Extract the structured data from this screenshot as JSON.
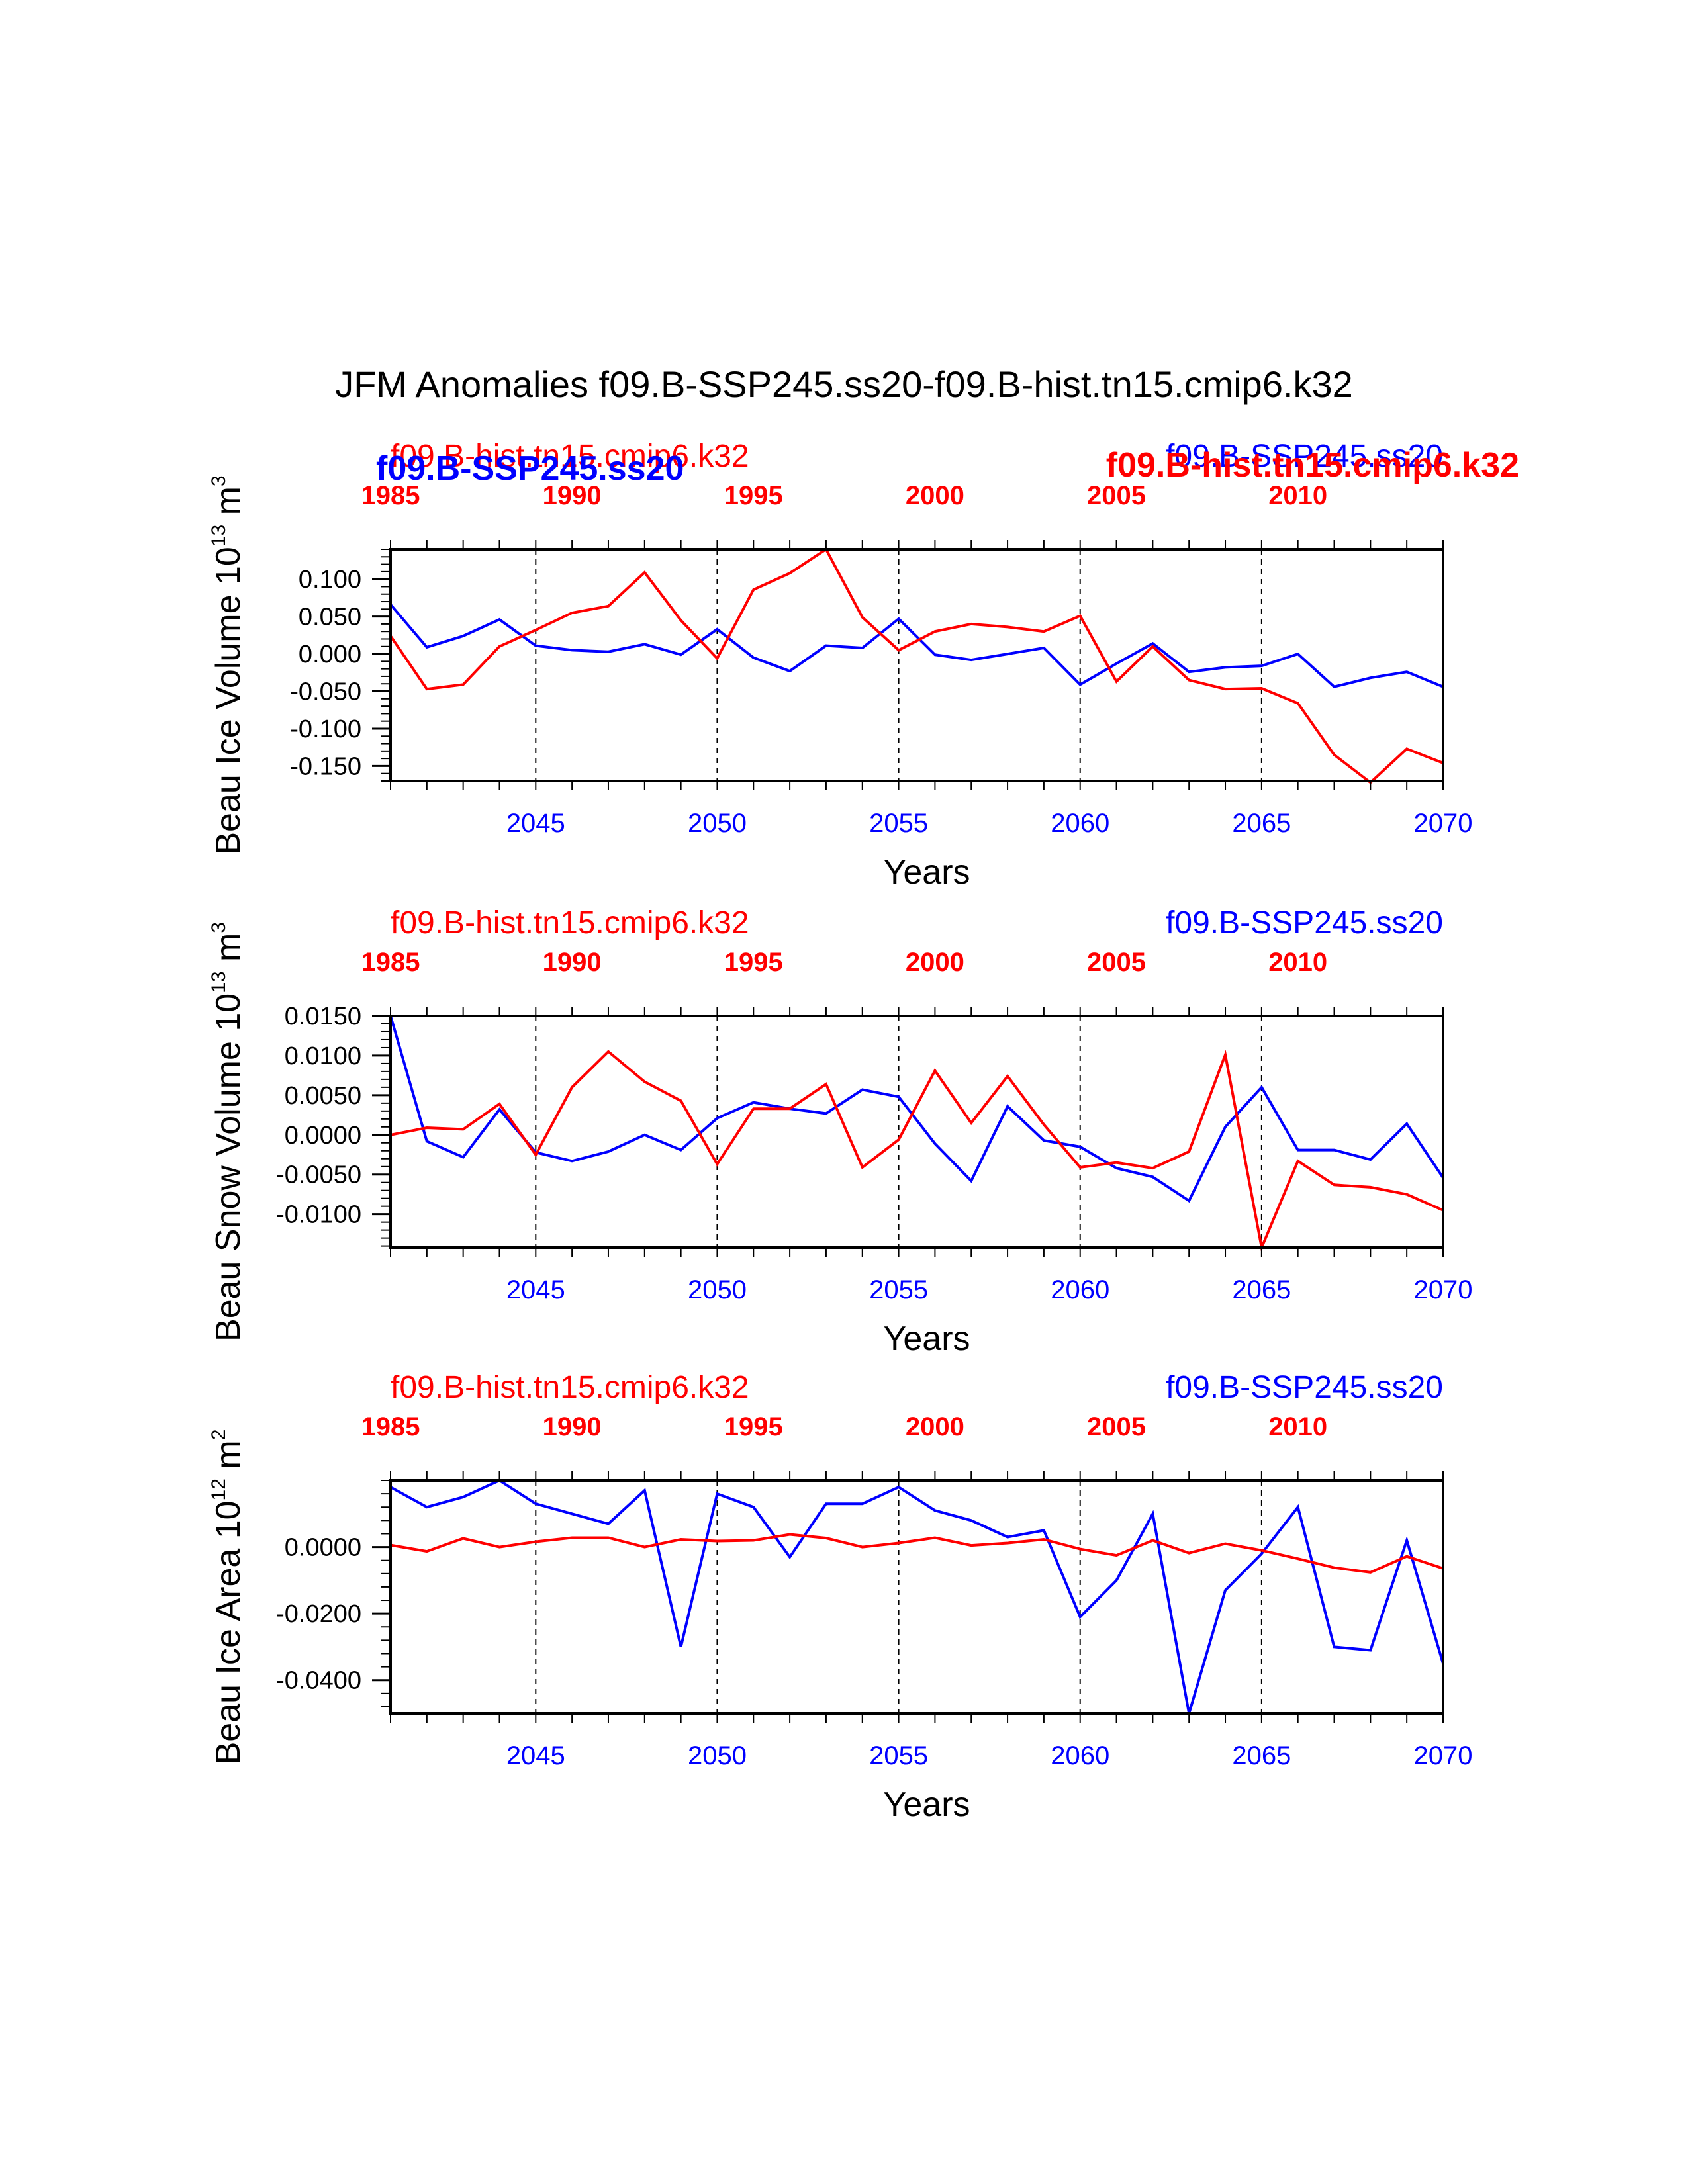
{
  "figure": {
    "title": "JFM Anomalies f09.B-SSP245.ss20-f09.B-hist.tn15.cmip6.k32"
  },
  "colors": {
    "hist": "#ff0000",
    "ssp": "#0000ff",
    "frame": "#000000"
  },
  "chart_data": [
    {
      "type": "line",
      "ylabel": "Beau Ice Volume 10",
      "ylabel_exp": "13",
      "ylabel_unit": " m",
      "ylabel_unit_exp": "3",
      "xlabel": "Years",
      "hist_label": "f09.B-hist.tn15.cmip6.k32",
      "ssp_label": "f09.B-SSP245.ss20",
      "overlap_hist_label": "f09.B-hist.tn15.cmip6.k32",
      "overlap_ssp_label": "f09.B-SSP245.ss20",
      "x_bottom_ticks": [
        "2045",
        "2050",
        "2055",
        "2060",
        "2065",
        "2070"
      ],
      "x_top_ticks": [
        "1985",
        "1990",
        "1995",
        "2000",
        "2005",
        "2010"
      ],
      "xlim": [
        2041,
        2070
      ],
      "ylim": [
        -0.17,
        0.14
      ],
      "y_ticks": [
        {
          "v": 0.1,
          "label": "0.100"
        },
        {
          "v": 0.05,
          "label": "0.050"
        },
        {
          "v": 0.0,
          "label": "0.000"
        },
        {
          "v": -0.05,
          "label": "-0.050"
        },
        {
          "v": -0.1,
          "label": "-0.100"
        },
        {
          "v": -0.15,
          "label": "-0.150"
        }
      ],
      "y_minor_step": 0.01,
      "dashed_x": [
        2045,
        2050,
        2055,
        2060,
        2065
      ],
      "x": [
        2041,
        2042,
        2043,
        2044,
        2045,
        2046,
        2047,
        2048,
        2049,
        2050,
        2051,
        2052,
        2053,
        2054,
        2055,
        2056,
        2057,
        2058,
        2059,
        2060,
        2061,
        2062,
        2063,
        2064,
        2065,
        2066,
        2067,
        2068,
        2069,
        2070
      ],
      "series": [
        {
          "name": "f09.B-SSP245.ss20",
          "color_key": "ssp",
          "values": [
            0.066,
            0.009,
            0.024,
            0.046,
            0.011,
            0.005,
            0.003,
            0.013,
            -0.001,
            0.033,
            -0.005,
            -0.023,
            0.011,
            0.008,
            0.047,
            -0.001,
            -0.008,
            0.0,
            0.008,
            -0.041,
            -0.013,
            0.014,
            -0.024,
            -0.018,
            -0.016,
            0.0,
            -0.044,
            -0.032,
            -0.024,
            -0.044
          ]
        },
        {
          "name": "f09.B-hist.tn15.cmip6.k32",
          "color_key": "hist",
          "values": [
            0.024,
            -0.047,
            -0.041,
            0.01,
            0.032,
            0.055,
            0.064,
            0.109,
            0.045,
            -0.006,
            0.086,
            0.108,
            0.14,
            0.049,
            0.005,
            0.03,
            0.04,
            0.036,
            0.03,
            0.051,
            -0.037,
            0.01,
            -0.035,
            -0.047,
            -0.046,
            -0.066,
            -0.135,
            -0.172,
            -0.127,
            -0.146
          ]
        }
      ]
    },
    {
      "type": "line",
      "ylabel": "Beau Snow Volume 10",
      "ylabel_exp": "13",
      "ylabel_unit": " m",
      "ylabel_unit_exp": "3",
      "xlabel": "Years",
      "hist_label": "f09.B-hist.tn15.cmip6.k32",
      "ssp_label": "f09.B-SSP245.ss20",
      "x_bottom_ticks": [
        "2045",
        "2050",
        "2055",
        "2060",
        "2065",
        "2070"
      ],
      "x_top_ticks": [
        "1985",
        "1990",
        "1995",
        "2000",
        "2005",
        "2010"
      ],
      "xlim": [
        2041,
        2070
      ],
      "ylim": [
        -0.0142,
        0.015
      ],
      "y_ticks": [
        {
          "v": 0.015,
          "label": "0.0150"
        },
        {
          "v": 0.01,
          "label": "0.0100"
        },
        {
          "v": 0.005,
          "label": "0.0050"
        },
        {
          "v": 0.0,
          "label": "0.0000"
        },
        {
          "v": -0.005,
          "label": "-0.0050"
        },
        {
          "v": -0.01,
          "label": "-0.0100"
        }
      ],
      "y_minor_step": 0.001,
      "dashed_x": [
        2045,
        2050,
        2055,
        2060,
        2065
      ],
      "x": [
        2041,
        2042,
        2043,
        2044,
        2045,
        2046,
        2047,
        2048,
        2049,
        2050,
        2051,
        2052,
        2053,
        2054,
        2055,
        2056,
        2057,
        2058,
        2059,
        2060,
        2061,
        2062,
        2063,
        2064,
        2065,
        2066,
        2067,
        2068,
        2069,
        2070
      ],
      "series": [
        {
          "name": "f09.B-SSP245.ss20",
          "color_key": "ssp",
          "values": [
            0.015,
            -0.0008,
            -0.0028,
            0.0032,
            -0.0022,
            -0.0033,
            -0.0021,
            0.0,
            -0.0019,
            0.0021,
            0.0041,
            0.0033,
            0.0027,
            0.0057,
            0.0048,
            -0.0011,
            -0.0058,
            0.0036,
            -0.0007,
            -0.0015,
            -0.0042,
            -0.0053,
            -0.0083,
            0.001,
            0.006,
            -0.0019,
            -0.0019,
            -0.0031,
            0.0014,
            -0.0054
          ]
        },
        {
          "name": "f09.B-hist.tn15.cmip6.k32",
          "color_key": "hist",
          "values": [
            0.0,
            0.0009,
            0.0007,
            0.0039,
            -0.0025,
            0.006,
            0.0105,
            0.0067,
            0.0043,
            -0.0037,
            0.0033,
            0.0033,
            0.0064,
            -0.0041,
            -0.0006,
            0.0081,
            0.0015,
            0.0074,
            0.0013,
            -0.0041,
            -0.0035,
            -0.0042,
            -0.0021,
            0.0101,
            -0.0142,
            -0.0033,
            -0.0063,
            -0.0066,
            -0.0075,
            -0.0095
          ]
        }
      ]
    },
    {
      "type": "line",
      "ylabel": "Beau Ice Area 10",
      "ylabel_exp": "12",
      "ylabel_unit": " m",
      "ylabel_unit_exp": "2",
      "xlabel": "Years",
      "hist_label": "f09.B-hist.tn15.cmip6.k32",
      "ssp_label": "f09.B-SSP245.ss20",
      "x_bottom_ticks": [
        "2045",
        "2050",
        "2055",
        "2060",
        "2065",
        "2070"
      ],
      "x_top_ticks": [
        "1985",
        "1990",
        "1995",
        "2000",
        "2005",
        "2010"
      ],
      "xlim": [
        2041,
        2070
      ],
      "ylim": [
        -0.05,
        0.02
      ],
      "y_ticks": [
        {
          "v": 0.0,
          "label": "0.0000"
        },
        {
          "v": -0.02,
          "label": "-0.0200"
        },
        {
          "v": -0.04,
          "label": "-0.0400"
        }
      ],
      "y_minor_step": 0.004,
      "dashed_x": [
        2045,
        2050,
        2055,
        2060,
        2065
      ],
      "x": [
        2041,
        2042,
        2043,
        2044,
        2045,
        2046,
        2047,
        2048,
        2049,
        2050,
        2051,
        2052,
        2053,
        2054,
        2055,
        2056,
        2057,
        2058,
        2059,
        2060,
        2061,
        2062,
        2063,
        2064,
        2065,
        2066,
        2067,
        2068,
        2069,
        2070
      ],
      "series": [
        {
          "name": "f09.B-SSP245.ss20",
          "color_key": "ssp",
          "values": [
            0.018,
            0.012,
            0.015,
            0.02,
            0.013,
            0.01,
            0.007,
            0.017,
            -0.03,
            0.016,
            0.012,
            -0.003,
            0.013,
            0.013,
            0.018,
            0.011,
            0.008,
            0.003,
            0.005,
            -0.021,
            -0.01,
            0.01,
            -0.05,
            -0.013,
            -0.002,
            0.012,
            -0.03,
            -0.031,
            0.002,
            -0.035
          ]
        },
        {
          "name": "f09.B-hist.tn15.cmip6.k32",
          "color_key": "hist",
          "values": [
            0.0006,
            -0.0013,
            0.0026,
            0.0,
            0.0016,
            0.0028,
            0.0028,
            0.0,
            0.0023,
            0.0018,
            0.002,
            0.0038,
            0.0027,
            0.0,
            0.0012,
            0.0028,
            0.0005,
            0.0012,
            0.0023,
            -0.0006,
            -0.0025,
            0.002,
            -0.0018,
            0.001,
            -0.001,
            -0.0035,
            -0.0062,
            -0.0076,
            -0.0028,
            -0.0064
          ]
        }
      ]
    }
  ]
}
